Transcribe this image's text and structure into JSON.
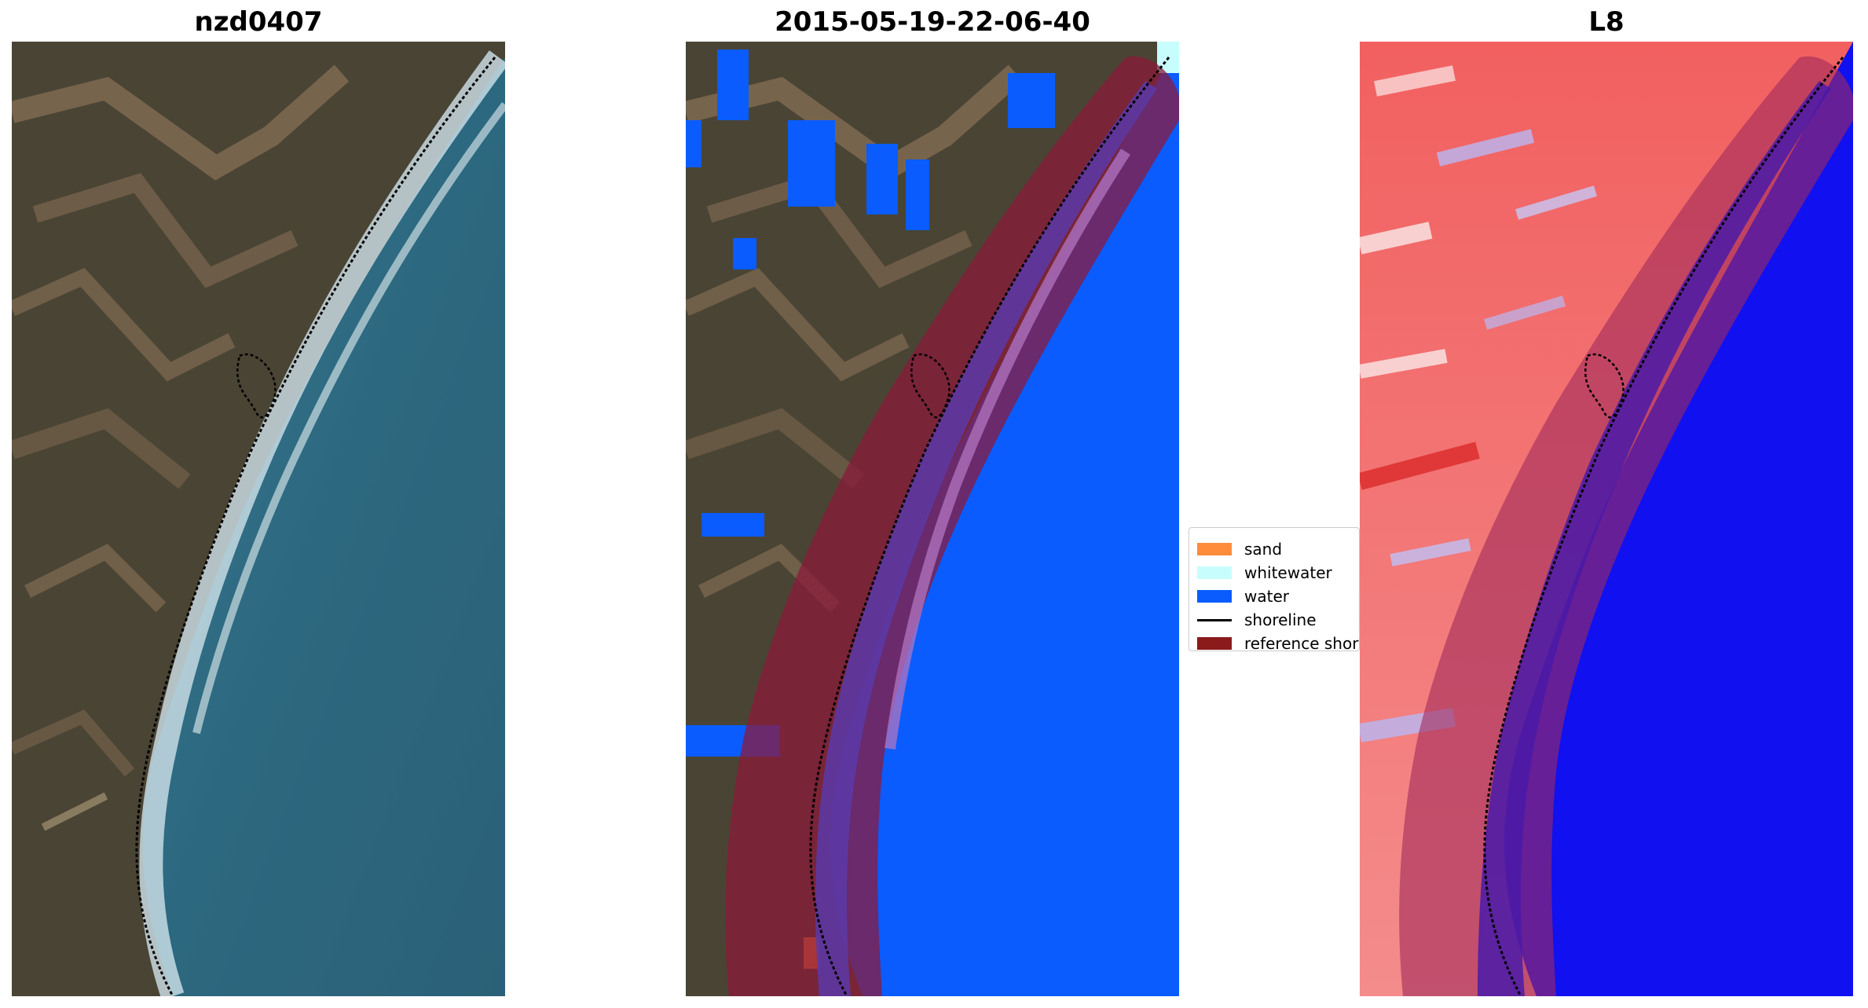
{
  "figure": {
    "panels": [
      {
        "title": "nzd0407"
      },
      {
        "title": "2015-05-19-22-06-40"
      },
      {
        "title": "L8"
      }
    ],
    "legend": {
      "entries": [
        {
          "label": "sand",
          "color": "#ff8c3a",
          "kind": "patch"
        },
        {
          "label": "whitewater",
          "color": "#c8fdfd",
          "kind": "patch"
        },
        {
          "label": "water",
          "color": "#0a5cff",
          "kind": "patch"
        },
        {
          "label": "shoreline",
          "color": "#000000",
          "kind": "line"
        },
        {
          "label": "reference shoreline buffer",
          "color": "#8b1a1a",
          "kind": "patch"
        }
      ]
    },
    "colors": {
      "land": "#4a4434",
      "land_light": "#8a7258",
      "ocean": "#2b6a82",
      "surf": "#d8e8ee",
      "water_class": "#0a5cff",
      "buffer": "#8b1a3a",
      "index_red": "#f04848",
      "index_blue": "#1010f0",
      "index_light": "#f7b3b3"
    },
    "icons": {
      "legend_line": "solid-black-line"
    }
  }
}
